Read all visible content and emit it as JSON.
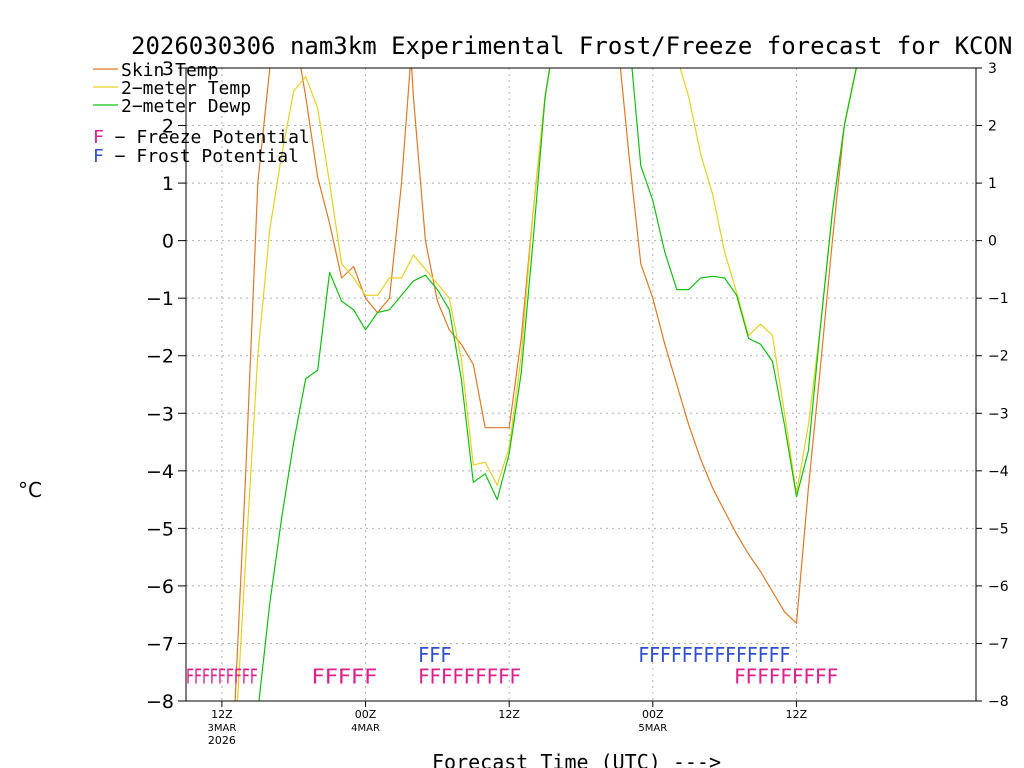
{
  "chart_data": {
    "type": "line",
    "title": "2026030306 nam3km Experimental Frost/Freeze forecast for KCON",
    "xlabel": "Forecast Time (UTC) --->",
    "ylabel": "°C",
    "ylim": [
      -8,
      3
    ],
    "xlim": [
      -3,
      63
    ],
    "yticks": [
      3,
      2,
      1,
      0,
      -1,
      -2,
      -3,
      -4,
      -5,
      -6,
      -7,
      -8
    ],
    "ytick_labels_left": [
      "3",
      "2",
      "1",
      "0",
      "−1",
      "−2",
      "−3",
      "−4",
      "−5",
      "−6",
      "−7",
      "−8"
    ],
    "ytick_labels_right": [
      "3",
      "2",
      "1",
      "0",
      "−1",
      "−2",
      "−3",
      "−4",
      "−5",
      "−6",
      "−7",
      "−8"
    ],
    "xticks": [
      {
        "h": 0,
        "label": "12Z",
        "sub": "3MAR",
        "sub2": "2026"
      },
      {
        "h": 12,
        "label": "00Z",
        "sub": "4MAR",
        "sub2": ""
      },
      {
        "h": 24,
        "label": "12Z",
        "sub": "",
        "sub2": ""
      },
      {
        "h": 36,
        "label": "00Z",
        "sub": "5MAR",
        "sub2": ""
      },
      {
        "h": 48,
        "label": "12Z",
        "sub": "",
        "sub2": ""
      }
    ],
    "grid": true,
    "series": [
      {
        "name": "Skin Temp",
        "color": "#e07828",
        "points": [
          [
            1.1,
            -8
          ],
          [
            2,
            -4
          ],
          [
            3,
            1
          ],
          [
            4,
            3
          ],
          [
            4.8,
            3.6
          ],
          [
            5,
            3.5
          ],
          [
            6,
            3.2
          ],
          [
            6.6,
            3.0
          ],
          [
            7,
            2.5
          ],
          [
            8,
            1.1
          ],
          [
            9,
            0.3
          ],
          [
            10,
            -0.65
          ],
          [
            11,
            -0.45
          ],
          [
            12,
            -1.0
          ],
          [
            13,
            -1.25
          ],
          [
            14,
            -1.0
          ],
          [
            15,
            1.0
          ],
          [
            15.8,
            3.2
          ],
          [
            16,
            2.5
          ],
          [
            17,
            0.0
          ],
          [
            18,
            -1.05
          ],
          [
            19,
            -1.55
          ],
          [
            20,
            -1.8
          ],
          [
            21,
            -2.15
          ],
          [
            22,
            -3.25
          ],
          [
            23,
            -3.25
          ],
          [
            24,
            -3.25
          ],
          [
            25,
            -1.7
          ],
          [
            26,
            0.5
          ],
          [
            27,
            2.5
          ],
          [
            28,
            3.8
          ],
          [
            33.2,
            3.2
          ],
          [
            34,
            1.5
          ],
          [
            35,
            -0.4
          ],
          [
            36,
            -1.0
          ],
          [
            37,
            -1.8
          ],
          [
            38,
            -2.5
          ],
          [
            39,
            -3.2
          ],
          [
            40,
            -3.8
          ],
          [
            41,
            -4.3
          ],
          [
            42,
            -4.7
          ],
          [
            43,
            -5.1
          ],
          [
            44,
            -5.45
          ],
          [
            45,
            -5.75
          ],
          [
            46,
            -6.1
          ],
          [
            47,
            -6.45
          ],
          [
            48,
            -6.65
          ],
          [
            49,
            -4.3
          ],
          [
            50,
            -2.2
          ],
          [
            51,
            0.0
          ],
          [
            52,
            2.0
          ],
          [
            53,
            3.0
          ],
          [
            54,
            3.3
          ]
        ]
      },
      {
        "name": "2-meter Temp",
        "color": "#e6d020",
        "points": [
          [
            1.3,
            -8
          ],
          [
            2,
            -5.5
          ],
          [
            3,
            -2.0
          ],
          [
            4,
            0.2
          ],
          [
            5,
            1.5
          ],
          [
            6,
            2.6
          ],
          [
            7,
            2.85
          ],
          [
            8,
            2.3
          ],
          [
            9,
            1.0
          ],
          [
            10,
            -0.4
          ],
          [
            11,
            -0.65
          ],
          [
            12,
            -0.95
          ],
          [
            13,
            -0.95
          ],
          [
            14,
            -0.65
          ],
          [
            15,
            -0.65
          ],
          [
            16,
            -0.25
          ],
          [
            17,
            -0.5
          ],
          [
            18,
            -0.75
          ],
          [
            19,
            -1.0
          ],
          [
            20,
            -2.05
          ],
          [
            21,
            -3.9
          ],
          [
            22,
            -3.85
          ],
          [
            23,
            -4.25
          ],
          [
            24,
            -3.6
          ],
          [
            25,
            -2.0
          ],
          [
            26,
            0.5
          ],
          [
            27,
            2.5
          ],
          [
            28,
            3.8
          ],
          [
            38,
            3.2
          ],
          [
            39,
            2.5
          ],
          [
            40,
            1.5
          ],
          [
            41,
            0.8
          ],
          [
            42,
            -0.2
          ],
          [
            43,
            -0.9
          ],
          [
            44,
            -1.65
          ],
          [
            45,
            -1.45
          ],
          [
            46,
            -1.65
          ],
          [
            47,
            -3.0
          ],
          [
            48,
            -4.4
          ],
          [
            49,
            -3.2
          ],
          [
            50,
            -1.5
          ],
          [
            51,
            0.5
          ],
          [
            52,
            2.0
          ],
          [
            53,
            3.0
          ]
        ]
      },
      {
        "name": "2-meter Dewp",
        "color": "#10c010",
        "points": [
          [
            3.1,
            -8
          ],
          [
            4,
            -6.3
          ],
          [
            5,
            -4.8
          ],
          [
            6,
            -3.5
          ],
          [
            7,
            -2.4
          ],
          [
            8,
            -2.25
          ],
          [
            9,
            -0.55
          ],
          [
            10,
            -1.05
          ],
          [
            11,
            -1.2
          ],
          [
            12,
            -1.55
          ],
          [
            13,
            -1.25
          ],
          [
            14,
            -1.2
          ],
          [
            15,
            -0.95
          ],
          [
            16,
            -0.7
          ],
          [
            17,
            -0.6
          ],
          [
            18,
            -0.85
          ],
          [
            19,
            -1.2
          ],
          [
            20,
            -2.4
          ],
          [
            21,
            -4.2
          ],
          [
            22,
            -4.05
          ],
          [
            23,
            -4.5
          ],
          [
            24,
            -3.7
          ],
          [
            25,
            -2.3
          ],
          [
            26,
            0.0
          ],
          [
            27,
            2.5
          ],
          [
            28,
            3.8
          ],
          [
            34,
            3.6
          ],
          [
            35,
            1.3
          ],
          [
            36,
            0.7
          ],
          [
            37,
            -0.2
          ],
          [
            38,
            -0.85
          ],
          [
            39,
            -0.85
          ],
          [
            40,
            -0.65
          ],
          [
            41,
            -0.62
          ],
          [
            42,
            -0.65
          ],
          [
            43,
            -0.95
          ],
          [
            44,
            -1.7
          ],
          [
            45,
            -1.8
          ],
          [
            46,
            -2.1
          ],
          [
            47,
            -3.2
          ],
          [
            48,
            -4.45
          ],
          [
            49,
            -3.65
          ],
          [
            50,
            -1.5
          ],
          [
            51,
            0.5
          ],
          [
            52,
            2.0
          ],
          [
            53,
            3.0
          ]
        ]
      }
    ],
    "legend": [
      {
        "label": "Skin Temp",
        "color": "#e07828"
      },
      {
        "label": "2−meter Temp",
        "color": "#e6d020"
      },
      {
        "label": "2−meter Dewp",
        "color": "#10c010"
      }
    ],
    "potential_legend": [
      {
        "letter": "F",
        "text": " − Freeze Potential",
        "color": "#e0208a"
      },
      {
        "letter": "F",
        "text": " − Frost Potential",
        "color": "#3050d0"
      }
    ],
    "frost_rows": [
      {
        "kind": "freeze",
        "color": "#e0208a",
        "y": -7.52,
        "text": "FFFFFFFFF",
        "start": -3,
        "end": 3.0
      },
      {
        "kind": "freeze",
        "color": "#e0208a",
        "y": -7.52,
        "text": "FFFFF",
        "start": 7.5,
        "end": 13.0
      },
      {
        "kind": "freeze",
        "color": "#e0208a",
        "y": -7.52,
        "text": "FFFFFFFFF",
        "start": 16.4,
        "end": 25.0
      },
      {
        "kind": "frost",
        "color": "#3050d0",
        "y": -7.15,
        "text": "FFF",
        "start": 16.4,
        "end": 19.2
      },
      {
        "kind": "frost",
        "color": "#3050d0",
        "y": -7.15,
        "text": "FFFFFFFFFFFFFF",
        "start": 34.8,
        "end": 47.5
      },
      {
        "kind": "freeze",
        "color": "#e0208a",
        "y": -7.52,
        "text": "FFFFFFFFF",
        "start": 42.8,
        "end": 51.5
      }
    ]
  }
}
